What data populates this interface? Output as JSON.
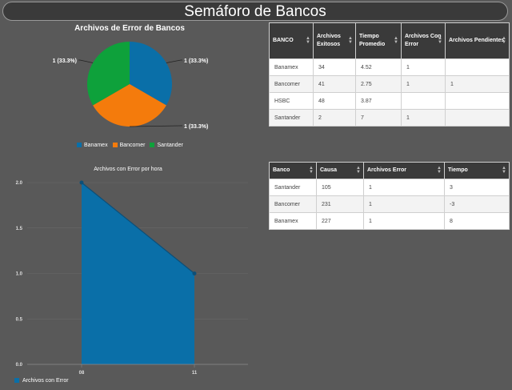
{
  "header": {
    "title": "Semáforo de Bancos"
  },
  "pie_chart": {
    "title": "Archivos de Error de Bancos",
    "slices": [
      {
        "name": "Banamex",
        "value": 1,
        "label": "1 (33.3%)",
        "color": "#0a6fa8"
      },
      {
        "name": "Bancomer",
        "value": 1,
        "label": "1 (33.3%)",
        "color": "#f47b0c"
      },
      {
        "name": "Santander",
        "value": 1,
        "label": "1 (33.3%)",
        "color": "#0ea13b"
      }
    ]
  },
  "chart_data": {
    "type": "area",
    "title": "Archivos con Error por hora",
    "x": [
      "08",
      "11"
    ],
    "series": [
      {
        "name": "Archivos con Error",
        "values": [
          2,
          1
        ],
        "color": "#0a6fa8"
      }
    ],
    "y_ticks": [
      "0.0",
      "0.5",
      "1.0",
      "1.5",
      "2.0"
    ],
    "ylim": [
      0,
      2
    ],
    "legend": "bottom-left"
  },
  "table1": {
    "headers": [
      "BANCO",
      "Archivos Exitosos",
      "Tiempo Promedio",
      "Archivos Con Error",
      "Archivos Pendientes"
    ],
    "rows": [
      [
        "Banamex",
        "34",
        "4.52",
        "1",
        ""
      ],
      [
        "Bancomer",
        "41",
        "2.75",
        "1",
        "1"
      ],
      [
        "HSBC",
        "48",
        "3.87",
        "",
        ""
      ],
      [
        "Santander",
        "2",
        "7",
        "1",
        ""
      ]
    ]
  },
  "table2": {
    "headers": [
      "Banco",
      "Causa",
      "Archivos Error",
      "Tiempo"
    ],
    "rows": [
      [
        "Santander",
        "105",
        "1",
        "3"
      ],
      [
        "Bancomer",
        "231",
        "1",
        "-3"
      ],
      [
        "Banamex",
        "227",
        "1",
        "8"
      ]
    ]
  }
}
